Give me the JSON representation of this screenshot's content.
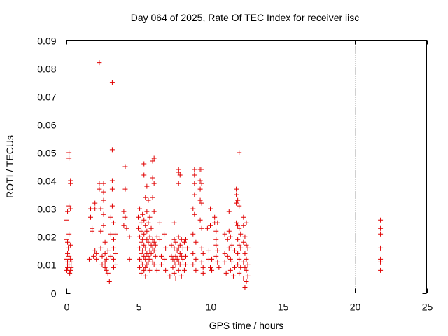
{
  "chart_data": {
    "type": "scatter",
    "title": "Day 064 of 2025, Rate Of TEC Index for receiver iisc",
    "xlabel": "GPS time / hours",
    "ylabel": "ROTI / TECUs",
    "xlim": [
      0,
      25
    ],
    "ylim": [
      0,
      0.09
    ],
    "x_ticks": [
      "0",
      "5",
      "10",
      "15",
      "20",
      "25"
    ],
    "y_ticks": [
      "0",
      "0.01",
      "0.02",
      "0.03",
      "0.04",
      "0.05",
      "0.06",
      "0.07",
      "0.08",
      "0.09"
    ],
    "grid": true,
    "marker": "+",
    "color": "#e00000",
    "series": [
      {
        "name": "ROTI",
        "points": [
          [
            0.0,
            0.019
          ],
          [
            0.0,
            0.026
          ],
          [
            0.0,
            0.012
          ],
          [
            0.05,
            0.008
          ],
          [
            0.1,
            0.029
          ],
          [
            0.1,
            0.018
          ],
          [
            0.1,
            0.014
          ],
          [
            0.1,
            0.011
          ],
          [
            0.1,
            0.009
          ],
          [
            0.15,
            0.016
          ],
          [
            0.2,
            0.05
          ],
          [
            0.2,
            0.048
          ],
          [
            0.2,
            0.031
          ],
          [
            0.2,
            0.021
          ],
          [
            0.2,
            0.013
          ],
          [
            0.2,
            0.01
          ],
          [
            0.25,
            0.007
          ],
          [
            0.3,
            0.04
          ],
          [
            0.3,
            0.039
          ],
          [
            0.3,
            0.03
          ],
          [
            0.3,
            0.017
          ],
          [
            0.3,
            0.012
          ],
          [
            0.3,
            0.008
          ],
          [
            0.35,
            0.011
          ],
          [
            0.35,
            0.009
          ],
          [
            1.6,
            0.012
          ],
          [
            1.7,
            0.03
          ],
          [
            1.7,
            0.027
          ],
          [
            1.8,
            0.023
          ],
          [
            1.8,
            0.022
          ],
          [
            1.9,
            0.013
          ],
          [
            2.0,
            0.032
          ],
          [
            2.0,
            0.03
          ],
          [
            2.0,
            0.015
          ],
          [
            2.1,
            0.014
          ],
          [
            2.1,
            0.012
          ],
          [
            2.3,
            0.082
          ],
          [
            2.3,
            0.039
          ],
          [
            2.3,
            0.037
          ],
          [
            2.4,
            0.03
          ],
          [
            2.4,
            0.022
          ],
          [
            2.4,
            0.016
          ],
          [
            2.5,
            0.013
          ],
          [
            2.5,
            0.01
          ],
          [
            2.6,
            0.039
          ],
          [
            2.6,
            0.036
          ],
          [
            2.6,
            0.033
          ],
          [
            2.6,
            0.028
          ],
          [
            2.6,
            0.024
          ],
          [
            2.7,
            0.018
          ],
          [
            2.7,
            0.014
          ],
          [
            2.7,
            0.011
          ],
          [
            2.7,
            0.009
          ],
          [
            2.8,
            0.012
          ],
          [
            2.8,
            0.008
          ],
          [
            2.9,
            0.015
          ],
          [
            2.9,
            0.007
          ],
          [
            3.0,
            0.004
          ],
          [
            3.1,
            0.027
          ],
          [
            3.1,
            0.021
          ],
          [
            3.1,
            0.013
          ],
          [
            3.2,
            0.075
          ],
          [
            3.2,
            0.051
          ],
          [
            3.2,
            0.04
          ],
          [
            3.2,
            0.037
          ],
          [
            3.2,
            0.031
          ],
          [
            3.3,
            0.025
          ],
          [
            3.3,
            0.019
          ],
          [
            3.3,
            0.016
          ],
          [
            3.3,
            0.012
          ],
          [
            3.3,
            0.009
          ],
          [
            3.4,
            0.021
          ],
          [
            3.4,
            0.014
          ],
          [
            3.4,
            0.01
          ],
          [
            4.0,
            0.029
          ],
          [
            4.0,
            0.024
          ],
          [
            4.1,
            0.045
          ],
          [
            4.1,
            0.037
          ],
          [
            4.1,
            0.027
          ],
          [
            4.2,
            0.023
          ],
          [
            4.4,
            0.02
          ],
          [
            4.4,
            0.012
          ],
          [
            5.0,
            0.027
          ],
          [
            5.0,
            0.023
          ],
          [
            5.1,
            0.03
          ],
          [
            5.1,
            0.02
          ],
          [
            5.1,
            0.016
          ],
          [
            5.1,
            0.012
          ],
          [
            5.1,
            0.009
          ],
          [
            5.2,
            0.025
          ],
          [
            5.2,
            0.022
          ],
          [
            5.2,
            0.018
          ],
          [
            5.2,
            0.014
          ],
          [
            5.2,
            0.011
          ],
          [
            5.2,
            0.007
          ],
          [
            5.3,
            0.028
          ],
          [
            5.3,
            0.019
          ],
          [
            5.3,
            0.015
          ],
          [
            5.3,
            0.01
          ],
          [
            5.4,
            0.046
          ],
          [
            5.4,
            0.042
          ],
          [
            5.4,
            0.026
          ],
          [
            5.4,
            0.021
          ],
          [
            5.4,
            0.017
          ],
          [
            5.4,
            0.013
          ],
          [
            5.4,
            0.008
          ],
          [
            5.5,
            0.034
          ],
          [
            5.5,
            0.024
          ],
          [
            5.5,
            0.016
          ],
          [
            5.5,
            0.012
          ],
          [
            5.5,
            0.009
          ],
          [
            5.5,
            0.006
          ],
          [
            5.6,
            0.038
          ],
          [
            5.6,
            0.029
          ],
          [
            5.6,
            0.022
          ],
          [
            5.6,
            0.019
          ],
          [
            5.6,
            0.014
          ],
          [
            5.6,
            0.01
          ],
          [
            5.7,
            0.033
          ],
          [
            5.7,
            0.025
          ],
          [
            5.7,
            0.018
          ],
          [
            5.7,
            0.013
          ],
          [
            5.7,
            0.011
          ],
          [
            5.8,
            0.027
          ],
          [
            5.8,
            0.02
          ],
          [
            5.8,
            0.015
          ],
          [
            5.8,
            0.012
          ],
          [
            5.8,
            0.008
          ],
          [
            5.9,
            0.023
          ],
          [
            5.9,
            0.017
          ],
          [
            5.9,
            0.014
          ],
          [
            6.0,
            0.047
          ],
          [
            6.0,
            0.041
          ],
          [
            6.0,
            0.034
          ],
          [
            6.0,
            0.019
          ],
          [
            6.0,
            0.016
          ],
          [
            6.0,
            0.011
          ],
          [
            6.1,
            0.048
          ],
          [
            6.1,
            0.039
          ],
          [
            6.1,
            0.029
          ],
          [
            6.1,
            0.018
          ],
          [
            6.1,
            0.015
          ],
          [
            6.1,
            0.01
          ],
          [
            6.2,
            0.017
          ],
          [
            6.2,
            0.013
          ],
          [
            6.3,
            0.02
          ],
          [
            6.3,
            0.008
          ],
          [
            6.5,
            0.025
          ],
          [
            6.5,
            0.019
          ],
          [
            6.6,
            0.013
          ],
          [
            6.6,
            0.01
          ],
          [
            6.8,
            0.021
          ],
          [
            6.8,
            0.012
          ],
          [
            6.9,
            0.016
          ],
          [
            6.9,
            0.008
          ],
          [
            7.2,
            0.006
          ],
          [
            7.3,
            0.017
          ],
          [
            7.3,
            0.013
          ],
          [
            7.4,
            0.012
          ],
          [
            7.4,
            0.009
          ],
          [
            7.5,
            0.025
          ],
          [
            7.5,
            0.019
          ],
          [
            7.5,
            0.016
          ],
          [
            7.5,
            0.011
          ],
          [
            7.5,
            0.007
          ],
          [
            7.6,
            0.018
          ],
          [
            7.6,
            0.013
          ],
          [
            7.6,
            0.01
          ],
          [
            7.6,
            0.005
          ],
          [
            7.7,
            0.015
          ],
          [
            7.7,
            0.012
          ],
          [
            7.8,
            0.044
          ],
          [
            7.8,
            0.043
          ],
          [
            7.8,
            0.039
          ],
          [
            7.8,
            0.02
          ],
          [
            7.8,
            0.016
          ],
          [
            7.8,
            0.011
          ],
          [
            7.8,
            0.008
          ],
          [
            7.9,
            0.042
          ],
          [
            7.9,
            0.017
          ],
          [
            7.9,
            0.014
          ],
          [
            7.9,
            0.01
          ],
          [
            8.0,
            0.019
          ],
          [
            8.0,
            0.013
          ],
          [
            8.0,
            0.006
          ],
          [
            8.1,
            0.016
          ],
          [
            8.1,
            0.012
          ],
          [
            8.2,
            0.018
          ],
          [
            8.2,
            0.008
          ],
          [
            8.3,
            0.019
          ],
          [
            8.3,
            0.013
          ],
          [
            8.3,
            0.01
          ],
          [
            8.4,
            0.016
          ],
          [
            8.8,
            0.03
          ],
          [
            8.8,
            0.021
          ],
          [
            8.8,
            0.014
          ],
          [
            8.8,
            0.01
          ],
          [
            8.9,
            0.044
          ],
          [
            8.9,
            0.042
          ],
          [
            8.9,
            0.039
          ],
          [
            8.9,
            0.035
          ],
          [
            8.9,
            0.028
          ],
          [
            9.0,
            0.018
          ],
          [
            9.0,
            0.012
          ],
          [
            9.0,
            0.008
          ],
          [
            9.3,
            0.044
          ],
          [
            9.3,
            0.04
          ],
          [
            9.3,
            0.037
          ],
          [
            9.3,
            0.033
          ],
          [
            9.3,
            0.026
          ],
          [
            9.4,
            0.044
          ],
          [
            9.4,
            0.039
          ],
          [
            9.4,
            0.032
          ],
          [
            9.4,
            0.023
          ],
          [
            9.4,
            0.016
          ],
          [
            9.4,
            0.011
          ],
          [
            9.5,
            0.014
          ],
          [
            9.5,
            0.009
          ],
          [
            9.5,
            0.007
          ],
          [
            9.8,
            0.023
          ],
          [
            9.9,
            0.015
          ],
          [
            9.9,
            0.012
          ],
          [
            10.0,
            0.03
          ],
          [
            10.0,
            0.024
          ],
          [
            10.0,
            0.009
          ],
          [
            10.1,
            0.012
          ],
          [
            10.1,
            0.008
          ],
          [
            10.3,
            0.027
          ],
          [
            10.3,
            0.025
          ],
          [
            10.4,
            0.022
          ],
          [
            10.4,
            0.019
          ],
          [
            10.4,
            0.017
          ],
          [
            10.4,
            0.013
          ],
          [
            10.5,
            0.025
          ],
          [
            10.5,
            0.015
          ],
          [
            10.5,
            0.011
          ],
          [
            10.6,
            0.009
          ],
          [
            11.0,
            0.021
          ],
          [
            11.0,
            0.014
          ],
          [
            11.0,
            0.011
          ],
          [
            11.1,
            0.007
          ],
          [
            11.2,
            0.019
          ],
          [
            11.2,
            0.013
          ],
          [
            11.3,
            0.029
          ],
          [
            11.3,
            0.022
          ],
          [
            11.3,
            0.016
          ],
          [
            11.4,
            0.02
          ],
          [
            11.4,
            0.012
          ],
          [
            11.4,
            0.008
          ],
          [
            11.5,
            0.017
          ],
          [
            11.5,
            0.011
          ],
          [
            11.6,
            0.006
          ],
          [
            11.7,
            0.015
          ],
          [
            11.7,
            0.009
          ],
          [
            11.8,
            0.037
          ],
          [
            11.8,
            0.035
          ],
          [
            11.8,
            0.032
          ],
          [
            11.8,
            0.025
          ],
          [
            11.9,
            0.033
          ],
          [
            11.9,
            0.024
          ],
          [
            11.9,
            0.019
          ],
          [
            11.9,
            0.014
          ],
          [
            11.9,
            0.01
          ],
          [
            12.0,
            0.05
          ],
          [
            12.0,
            0.031
          ],
          [
            12.0,
            0.023
          ],
          [
            12.0,
            0.017
          ],
          [
            12.0,
            0.012
          ],
          [
            12.0,
            0.007
          ],
          [
            12.1,
            0.021
          ],
          [
            12.1,
            0.016
          ],
          [
            12.1,
            0.009
          ],
          [
            12.3,
            0.027
          ],
          [
            12.3,
            0.024
          ],
          [
            12.3,
            0.018
          ],
          [
            12.3,
            0.011
          ],
          [
            12.3,
            0.005
          ],
          [
            12.4,
            0.02
          ],
          [
            12.4,
            0.014
          ],
          [
            12.4,
            0.009
          ],
          [
            12.4,
            0.002
          ],
          [
            12.5,
            0.025
          ],
          [
            12.5,
            0.017
          ],
          [
            12.5,
            0.012
          ],
          [
            12.5,
            0.008
          ],
          [
            12.5,
            0.004
          ],
          [
            12.6,
            0.016
          ],
          [
            12.6,
            0.01
          ],
          [
            12.6,
            0.006
          ],
          [
            21.8,
            0.026
          ],
          [
            21.8,
            0.023
          ],
          [
            21.8,
            0.021
          ],
          [
            21.8,
            0.016
          ],
          [
            21.8,
            0.012
          ],
          [
            21.8,
            0.011
          ],
          [
            21.8,
            0.008
          ]
        ]
      }
    ]
  }
}
